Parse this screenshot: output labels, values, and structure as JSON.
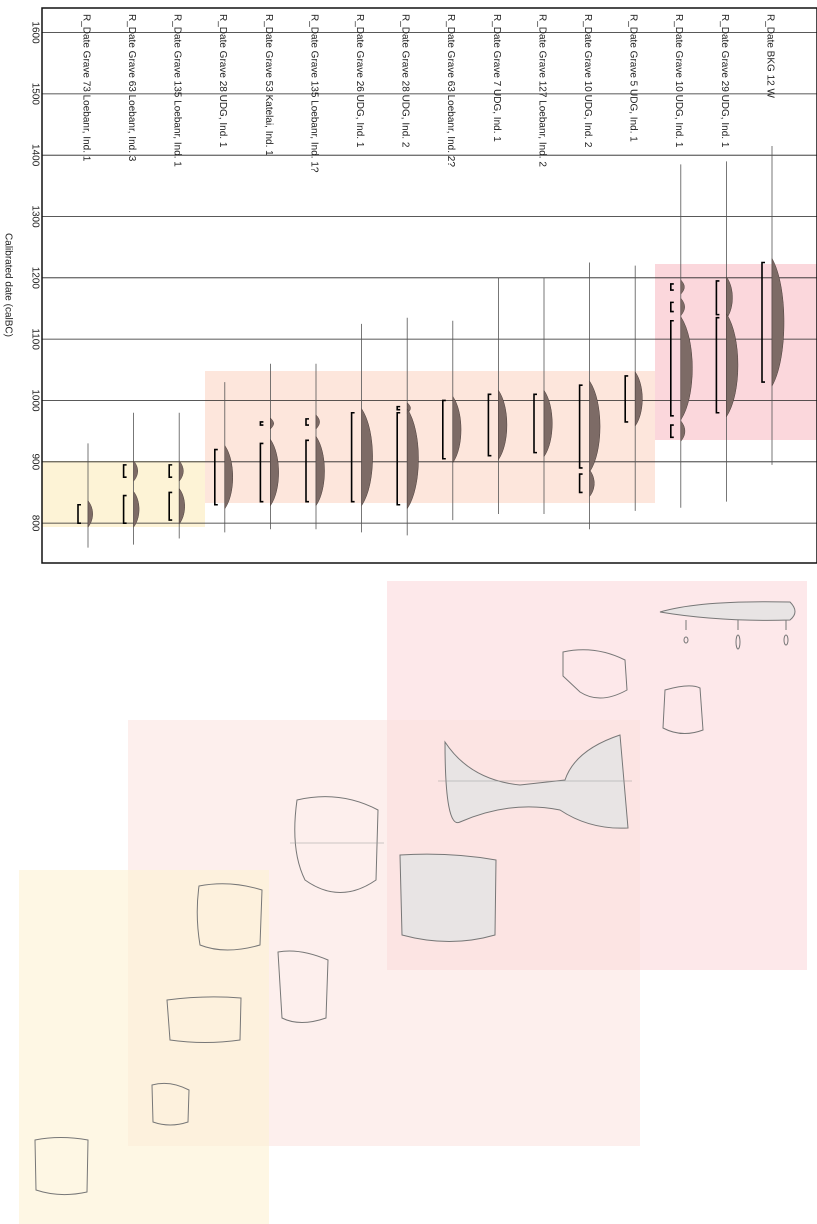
{
  "chart_data": {
    "type": "range",
    "y_label": "Calibrated date (calBC)",
    "categories": [
      "R_Date Grave 73 Loebanr, Ind. 1",
      "R_Date Grave 63 Loebanr, Ind. 3",
      "R_Date Grave 135 Loebanr, Ind. 1",
      "R_Date Grave 28 UDG, Ind. 1",
      "R_Date Grave 53 Katelai, Ind. 1",
      "R_Date Grave 135 Loebanr, Ind. 1?",
      "R_Date Grave 26 UDG, Ind. 1",
      "R_Date Grave 28 UDG, Ind. 2",
      "R_Date Grave 63 Loebanr, Ind. 2?",
      "R_Date Grave 7 UDG, Ind. 1",
      "R_Date Grave 127 Loebanr, Ind. 2",
      "R_Date Grave 10 UDG, Ind. 2",
      "R_Date Grave 5 UDG, Ind. 1",
      "R_Date Grave 10 UDG, Ind. 1",
      "R_Date Grave 29 UDG, Ind. 1",
      "R_Date BKG 12 W"
    ],
    "ranges": [
      [
        [
          830,
          800
        ]
      ],
      [
        [
          895,
          875
        ],
        [
          845,
          800
        ]
      ],
      [
        [
          895,
          875
        ],
        [
          850,
          805
        ]
      ],
      [
        [
          920,
          830
        ]
      ],
      [
        [
          965,
          960
        ],
        [
          930,
          835
        ]
      ],
      [
        [
          970,
          960
        ],
        [
          935,
          835
        ]
      ],
      [
        [
          980,
          835
        ]
      ],
      [
        [
          990,
          985
        ],
        [
          980,
          830
        ]
      ],
      [
        [
          1000,
          905
        ]
      ],
      [
        [
          1010,
          910
        ]
      ],
      [
        [
          1010,
          915
        ]
      ],
      [
        [
          1025,
          890
        ],
        [
          880,
          850
        ]
      ],
      [
        [
          1040,
          965
        ]
      ],
      [
        [
          1190,
          1180
        ],
        [
          1160,
          1145
        ],
        [
          1130,
          975
        ],
        [
          960,
          940
        ]
      ],
      [
        [
          1195,
          1140
        ],
        [
          1135,
          980
        ]
      ],
      [
        [
          1225,
          1030
        ]
      ]
    ],
    "extents": [
      [
        930,
        760
      ],
      [
        980,
        765
      ],
      [
        980,
        775
      ],
      [
        1030,
        785
      ],
      [
        1060,
        790
      ],
      [
        1060,
        790
      ],
      [
        1125,
        785
      ],
      [
        1135,
        780
      ],
      [
        1130,
        805
      ],
      [
        1200,
        815
      ],
      [
        1200,
        815
      ],
      [
        1225,
        790
      ],
      [
        1220,
        820
      ],
      [
        1385,
        825
      ],
      [
        1390,
        835
      ],
      [
        1415,
        895
      ]
    ],
    "color": "#7d6b66",
    "ylim": [
      735,
      1640
    ],
    "yticks": [
      800,
      900,
      1000,
      1100,
      1200,
      1300,
      1400,
      1500,
      1600
    ],
    "grid": true
  }
}
